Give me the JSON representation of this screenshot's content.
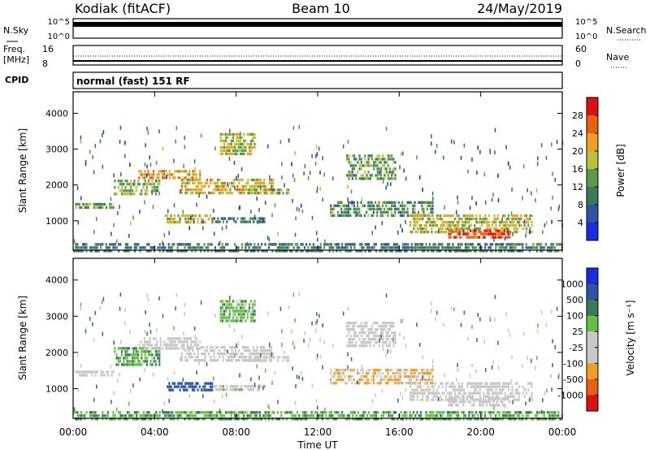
{
  "header": {
    "station": "Kodiak (fitACF)",
    "beam": "Beam 10",
    "date": "24/May/2019"
  },
  "noise_panel": {
    "left_label": "N.Sky",
    "right_label": "N.Search",
    "left_ticks": [
      "10^5",
      "10^0"
    ],
    "right_ticks": [
      "10^5",
      "10^0"
    ]
  },
  "freq_panel": {
    "left_label_1": "Freq.",
    "left_label_2": "[MHz]",
    "right_label": "Nave",
    "left_ticks": [
      "16",
      "8"
    ],
    "right_ticks": [
      "60",
      "0"
    ]
  },
  "cpid_panel": {
    "label": "CPID",
    "text": "normal (fast) 151 RF"
  },
  "power_panel": {
    "ylabel": "Slant Range [km]",
    "colorbar_label": "Power [dB]",
    "colorbar_ticks": [
      "28",
      "24",
      "20",
      "16",
      "12",
      "8",
      "4"
    ]
  },
  "velocity_panel": {
    "ylabel": "Slant Range [km]",
    "colorbar_label": "Velocity  [m s⁻¹]",
    "colorbar_ticks": [
      "1000",
      "500",
      "100",
      "25",
      "-25",
      "-100",
      "-500",
      "-1000"
    ]
  },
  "xlabel": "Time UT",
  "colors": {
    "power_scale": [
      "#1a2de0",
      "#2c55a8",
      "#3a7a58",
      "#5a9a4a",
      "#b8c23a",
      "#f0a020",
      "#e86010",
      "#e01010"
    ],
    "velocity_scale": [
      "#e01010",
      "#e86010",
      "#f0a020",
      "#c8c8c8",
      "#c8c8c8",
      "#64c040",
      "#3a7a58",
      "#2c55a8",
      "#1a2de0"
    ]
  },
  "chart_data": {
    "type": "heatmap",
    "x_ticks": [
      "00:00",
      "04:00",
      "08:00",
      "12:00",
      "16:00",
      "20:00",
      "00:00"
    ],
    "x_range_hours": [
      0,
      24
    ],
    "y_range_km": [
      180,
      4600
    ],
    "y_ticks": [
      1000,
      2000,
      3000,
      4000
    ],
    "echo_regions": [
      {
        "t0": 0.1,
        "t1": 2.0,
        "r0": 1380,
        "r1": 1500,
        "power_db": 13,
        "velocity": -25
      },
      {
        "t0": 2.0,
        "t1": 4.2,
        "r0": 1700,
        "r1": 2150,
        "power_db": 15,
        "velocity": 20
      },
      {
        "t0": 3.2,
        "t1": 6.2,
        "r0": 2150,
        "r1": 2420,
        "power_db": 22,
        "velocity": -30
      },
      {
        "t0": 5.3,
        "t1": 9.8,
        "r0": 1780,
        "r1": 2180,
        "power_db": 20,
        "velocity": -40
      },
      {
        "t0": 8.6,
        "t1": 10.6,
        "r0": 1760,
        "r1": 1900,
        "power_db": 16,
        "velocity": -20
      },
      {
        "t0": 4.5,
        "t1": 6.8,
        "r0": 920,
        "r1": 1180,
        "power_db": 18,
        "velocity": 300
      },
      {
        "t0": 6.8,
        "t1": 9.4,
        "r0": 960,
        "r1": 1100,
        "power_db": 10,
        "velocity": -15
      },
      {
        "t0": 7.2,
        "t1": 8.9,
        "r0": 2900,
        "r1": 3450,
        "power_db": 17,
        "velocity": 15
      },
      {
        "t0": 13.4,
        "t1": 15.8,
        "r0": 2150,
        "r1": 2850,
        "power_db": 14,
        "velocity": -20
      },
      {
        "t0": 12.6,
        "t1": 17.6,
        "r0": 1150,
        "r1": 1550,
        "power_db": 12,
        "velocity": -100
      },
      {
        "t0": 16.5,
        "t1": 22.5,
        "r0": 680,
        "r1": 1180,
        "power_db": 18,
        "velocity": -30
      },
      {
        "t0": 18.4,
        "t1": 21.4,
        "r0": 560,
        "r1": 760,
        "power_db": 28,
        "velocity": -25
      },
      {
        "t0": 0.0,
        "t1": 24.0,
        "r0": 180,
        "r1": 380,
        "power_db": 10,
        "velocity": 20
      }
    ]
  }
}
